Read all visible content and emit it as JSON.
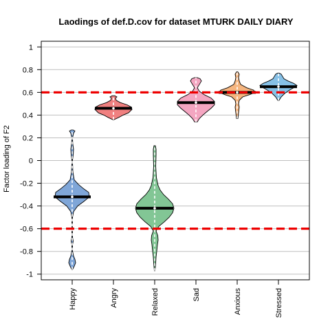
{
  "chart_data": {
    "type": "violin",
    "title": "Laodings of def.D.cov for dataset MTURK DAILY DIARY",
    "xlabel": "",
    "ylabel": "Factor loading of F2",
    "ylim": [
      -1.05,
      1.05
    ],
    "yticks": [
      1,
      0.8,
      0.6,
      0.4,
      0.2,
      0,
      -0.2,
      -0.4,
      -0.6,
      -0.8,
      -1
    ],
    "ytick_labels": [
      "1",
      "0.8",
      "0.6",
      "0.4",
      "0.2",
      "0",
      "-0.2",
      "-0.4",
      "-0.6",
      "-0.8",
      "-1"
    ],
    "grid": "horizontal",
    "reference_lines": [
      {
        "value": 0.6,
        "style": "dashed",
        "color": "#ee0000"
      },
      {
        "value": -0.6,
        "style": "dashed",
        "color": "#ee0000"
      }
    ],
    "categories": [
      "Happy",
      "Angry",
      "Relaxed",
      "Sad",
      "Anxious",
      "Stressed"
    ],
    "violins": [
      {
        "name": "Happy",
        "color": "#7fa6d8",
        "median": -0.32,
        "min": -0.96,
        "max": 0.27,
        "profile": [
          [
            -0.96,
            0.5
          ],
          [
            -0.93,
            3
          ],
          [
            -0.9,
            5
          ],
          [
            -0.87,
            4
          ],
          [
            -0.84,
            2
          ],
          [
            -0.8,
            0.6
          ],
          [
            -0.74,
            0.5
          ],
          [
            -0.71,
            1.5
          ],
          [
            -0.68,
            0.6
          ],
          [
            -0.6,
            0.3
          ],
          [
            -0.5,
            0.5
          ],
          [
            -0.45,
            2
          ],
          [
            -0.4,
            8
          ],
          [
            -0.36,
            17
          ],
          [
            -0.32,
            25
          ],
          [
            -0.28,
            24
          ],
          [
            -0.25,
            17
          ],
          [
            -0.21,
            9
          ],
          [
            -0.17,
            3
          ],
          [
            -0.1,
            1
          ],
          [
            0,
            0.4
          ],
          [
            0.05,
            1.5
          ],
          [
            0.1,
            2
          ],
          [
            0.15,
            0.8
          ],
          [
            0.2,
            0.5
          ],
          [
            0.24,
            2
          ],
          [
            0.26,
            4
          ],
          [
            0.27,
            1
          ]
        ]
      },
      {
        "name": "Angry",
        "color": "#f08080",
        "median": 0.46,
        "min": 0.36,
        "max": 0.57,
        "profile": [
          [
            0.36,
            1
          ],
          [
            0.38,
            8
          ],
          [
            0.4,
            14
          ],
          [
            0.42,
            22
          ],
          [
            0.45,
            27
          ],
          [
            0.47,
            26
          ],
          [
            0.49,
            20
          ],
          [
            0.51,
            10
          ],
          [
            0.53,
            4
          ],
          [
            0.55,
            3
          ],
          [
            0.56,
            5
          ],
          [
            0.57,
            2
          ]
        ]
      },
      {
        "name": "Relaxed",
        "color": "#82c695",
        "median": -0.42,
        "min": -0.97,
        "max": 0.13,
        "profile": [
          [
            -0.97,
            0.5
          ],
          [
            -0.9,
            1.5
          ],
          [
            -0.85,
            2
          ],
          [
            -0.8,
            3
          ],
          [
            -0.74,
            4
          ],
          [
            -0.7,
            5
          ],
          [
            -0.66,
            4.5
          ],
          [
            -0.62,
            2
          ],
          [
            -0.58,
            6
          ],
          [
            -0.54,
            14
          ],
          [
            -0.5,
            21
          ],
          [
            -0.46,
            26
          ],
          [
            -0.42,
            28
          ],
          [
            -0.38,
            26
          ],
          [
            -0.34,
            20
          ],
          [
            -0.3,
            13
          ],
          [
            -0.26,
            8
          ],
          [
            -0.22,
            5
          ],
          [
            -0.15,
            2.5
          ],
          [
            -0.05,
            1.5
          ],
          [
            0.05,
            2
          ],
          [
            0.1,
            2
          ],
          [
            0.13,
            1
          ]
        ]
      },
      {
        "name": "Sad",
        "color": "#f4a6c1",
        "median": 0.51,
        "min": 0.34,
        "max": 0.73,
        "profile": [
          [
            0.34,
            2
          ],
          [
            0.37,
            5
          ],
          [
            0.4,
            10
          ],
          [
            0.43,
            16
          ],
          [
            0.46,
            22
          ],
          [
            0.49,
            27
          ],
          [
            0.52,
            27
          ],
          [
            0.55,
            22
          ],
          [
            0.58,
            12
          ],
          [
            0.61,
            5
          ],
          [
            0.64,
            2
          ],
          [
            0.67,
            5
          ],
          [
            0.7,
            8
          ],
          [
            0.72,
            6
          ],
          [
            0.73,
            2
          ]
        ]
      },
      {
        "name": "Anxious",
        "color": "#f5b57f",
        "median": 0.6,
        "min": 0.37,
        "max": 0.78,
        "profile": [
          [
            0.37,
            1
          ],
          [
            0.42,
            2
          ],
          [
            0.47,
            3
          ],
          [
            0.5,
            2
          ],
          [
            0.53,
            3
          ],
          [
            0.56,
            8
          ],
          [
            0.58,
            18
          ],
          [
            0.6,
            26
          ],
          [
            0.62,
            24
          ],
          [
            0.64,
            14
          ],
          [
            0.67,
            5
          ],
          [
            0.7,
            3
          ],
          [
            0.73,
            2
          ],
          [
            0.76,
            3
          ],
          [
            0.78,
            1
          ]
        ]
      },
      {
        "name": "Stressed",
        "color": "#86c0e6",
        "median": 0.65,
        "min": 0.53,
        "max": 0.77,
        "profile": [
          [
            0.53,
            1
          ],
          [
            0.56,
            4
          ],
          [
            0.59,
            9
          ],
          [
            0.62,
            16
          ],
          [
            0.64,
            22
          ],
          [
            0.66,
            27
          ],
          [
            0.68,
            22
          ],
          [
            0.7,
            14
          ],
          [
            0.72,
            8
          ],
          [
            0.74,
            6
          ],
          [
            0.76,
            4
          ],
          [
            0.77,
            1
          ]
        ]
      }
    ]
  }
}
